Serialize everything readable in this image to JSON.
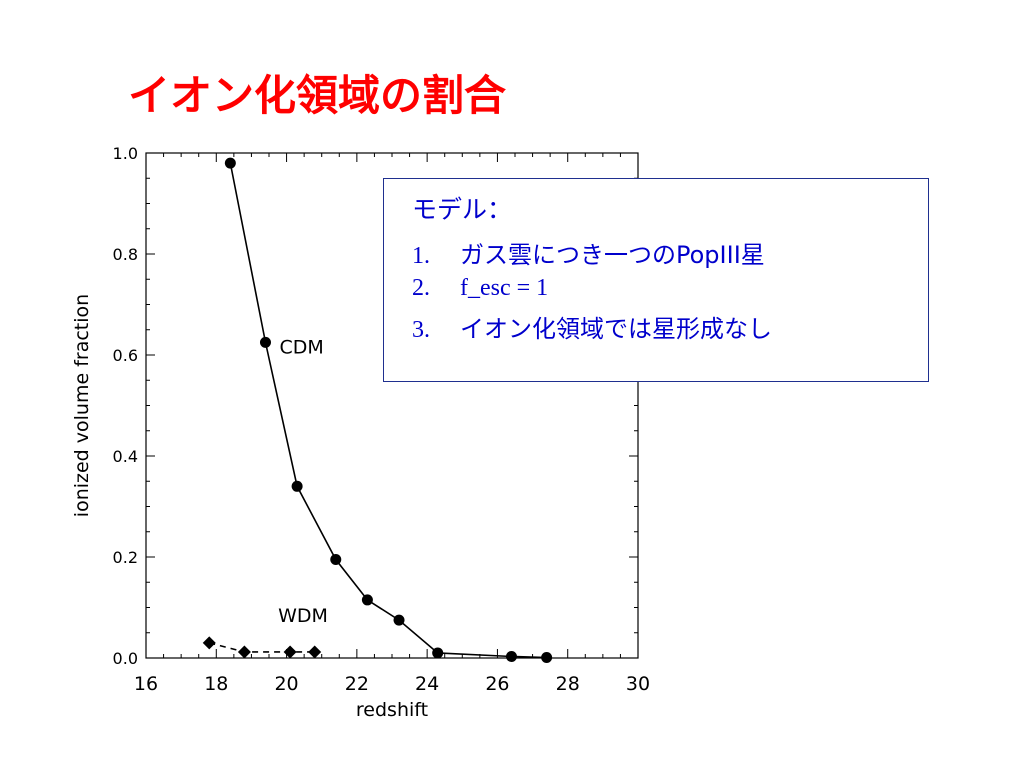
{
  "slide": {
    "title": "イオン化領域の割合",
    "title_color": "#ff0000"
  },
  "model_box": {
    "heading": "モデル：",
    "items": [
      {
        "number": "1.",
        "text": "ガス雲につき一つのPopIII星"
      },
      {
        "number": "2.",
        "text": "f_esc = 1"
      },
      {
        "number": "3.",
        "text": "イオン化領域では星形成なし"
      }
    ],
    "text_color": "#0000cc",
    "border_color": "#1f2f8f"
  },
  "chart_data": {
    "type": "line",
    "title": "",
    "xlabel": "redshift",
    "ylabel": "ionized volume fraction",
    "xlim": [
      16,
      30
    ],
    "ylim": [
      0.0,
      1.0
    ],
    "x_ticks": [
      "16",
      "18",
      "20",
      "22",
      "24",
      "26",
      "28",
      "30"
    ],
    "y_ticks": [
      "0.0",
      "0.2",
      "0.4",
      "0.6",
      "0.8",
      "1.0"
    ],
    "grid": false,
    "series": [
      {
        "name": "CDM",
        "marker": "circle",
        "line_style": "solid",
        "x": [
          18.4,
          19.4,
          20.3,
          21.4,
          22.3,
          23.2,
          24.3,
          26.4,
          27.4
        ],
        "y": [
          0.98,
          0.625,
          0.34,
          0.195,
          0.115,
          0.075,
          0.01,
          0.003,
          0.001
        ]
      },
      {
        "name": "WDM",
        "marker": "diamond",
        "line_style": "dashed",
        "x": [
          17.8,
          18.8,
          20.1,
          20.8
        ],
        "y": [
          0.03,
          0.012,
          0.012,
          0.012
        ]
      }
    ]
  }
}
